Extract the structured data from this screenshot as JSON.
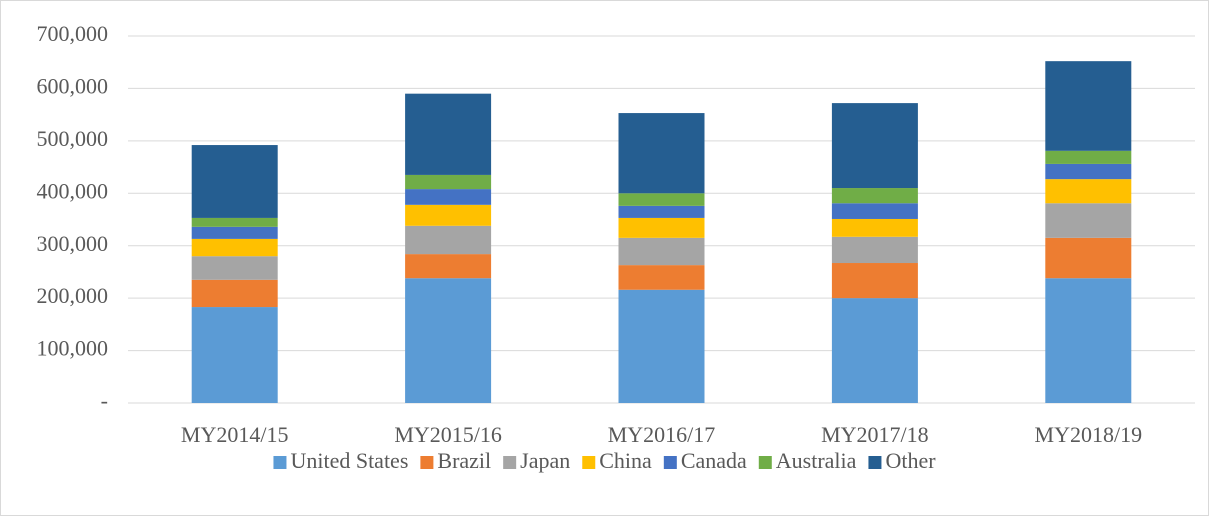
{
  "chart_data": {
    "type": "stacked-bar",
    "categories": [
      "MY2014/15",
      "MY2015/16",
      "MY2016/17",
      "MY2017/18",
      "MY2018/19"
    ],
    "series": [
      {
        "name": "United States",
        "color": "#5b9bd5",
        "values": [
          183000,
          238000,
          216000,
          200000,
          238000
        ]
      },
      {
        "name": "Brazil",
        "color": "#ed7d31",
        "values": [
          52000,
          46000,
          47000,
          67000,
          77000
        ]
      },
      {
        "name": "Japan",
        "color": "#a5a5a5",
        "values": [
          45000,
          54000,
          52000,
          50000,
          66000
        ]
      },
      {
        "name": "China",
        "color": "#ffc000",
        "values": [
          33000,
          40000,
          38000,
          34000,
          46000
        ]
      },
      {
        "name": "Canada",
        "color": "#4472c4",
        "values": [
          23000,
          30000,
          23000,
          30000,
          29000
        ]
      },
      {
        "name": "Australia",
        "color": "#70ad47",
        "values": [
          17000,
          27000,
          24000,
          29000,
          25000
        ]
      },
      {
        "name": "Other",
        "color": "#255e91",
        "values": [
          139000,
          155000,
          153000,
          162000,
          171000
        ]
      }
    ],
    "ylim": [
      0,
      700000
    ],
    "yticks": [
      {
        "value": 0,
        "label": "-"
      },
      {
        "value": 100000,
        "label": "100,000"
      },
      {
        "value": 200000,
        "label": "200,000"
      },
      {
        "value": 300000,
        "label": "300,000"
      },
      {
        "value": 400000,
        "label": "400,000"
      },
      {
        "value": 500000,
        "label": "500,000"
      },
      {
        "value": 600000,
        "label": "600,000"
      },
      {
        "value": 700000,
        "label": "700,000"
      }
    ],
    "grid": true,
    "legend": "bottom"
  }
}
